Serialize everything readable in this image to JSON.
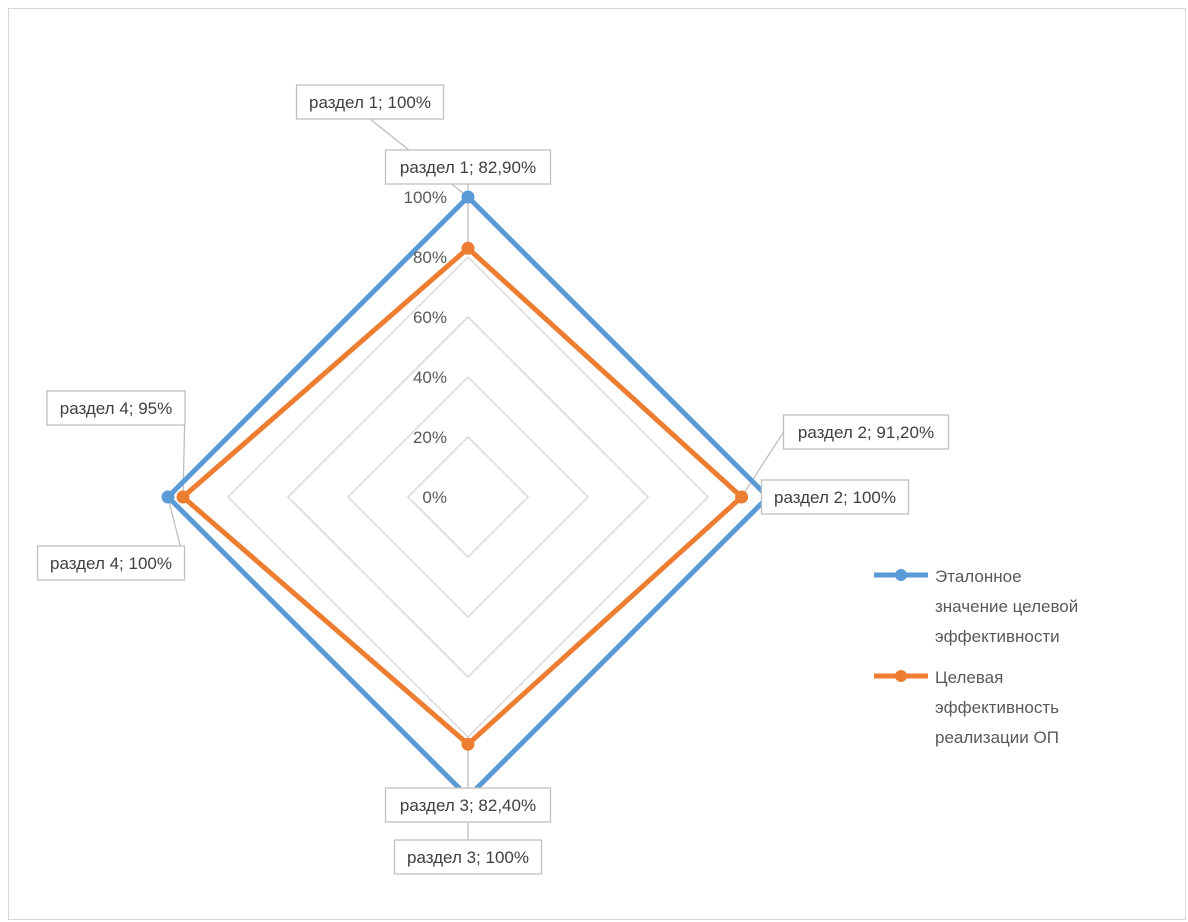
{
  "chart_data": {
    "type": "radar",
    "categories": [
      "раздел 1",
      "раздел 2",
      "раздел 3",
      "раздел 4"
    ],
    "series": [
      {
        "name": "Эталонное значение целевой эффективности",
        "legend_lines": [
          "Эталонное",
          "значение целевой",
          "эффективности"
        ],
        "values": [
          100,
          100,
          100,
          100
        ],
        "labels": [
          "раздел 1; 100%",
          "раздел 2; 100%",
          "раздел 3; 100%",
          "раздел 4; 100%"
        ],
        "color": "#5b9bd5"
      },
      {
        "name": "Целевая эффективность реализации ОП",
        "legend_lines": [
          "Целевая",
          "эффективность",
          "реализации ОП"
        ],
        "values": [
          82.9,
          91.2,
          82.4,
          95
        ],
        "labels": [
          "раздел 1; 82,90%",
          "раздел 2; 91,20%",
          "раздел 3; 82,40%",
          "раздел 4; 95%"
        ],
        "color": "#ed7d31"
      }
    ],
    "ticks": [
      "0%",
      "20%",
      "40%",
      "60%",
      "80%",
      "100%"
    ],
    "range": [
      0,
      100
    ],
    "grid": true,
    "legend_position": "right"
  }
}
